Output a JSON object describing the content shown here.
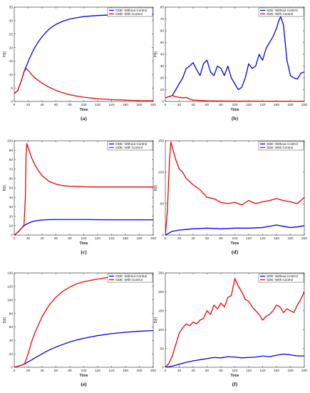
{
  "colors": {
    "without": "#0000ee",
    "with": "#ee0000",
    "axis": "#222222",
    "grid": "#e6e6e6"
  },
  "chart_data": [
    {
      "id": "a",
      "panel_label": "(a)",
      "type": "line",
      "xlabel": "Time",
      "ylabel": "Iᴺ(t)",
      "xlim": [
        0,
        200
      ],
      "ylim": [
        0,
        35
      ],
      "xticks": [
        0,
        20,
        40,
        60,
        80,
        100,
        120,
        140,
        160,
        180,
        200
      ],
      "yticks": [
        0,
        5,
        10,
        15,
        20,
        25,
        30,
        35
      ],
      "series": [
        {
          "name": "ODE: Without Control",
          "color": "#0000ee",
          "x": [
            0,
            5,
            10,
            14,
            18,
            22,
            26,
            30,
            35,
            40,
            45,
            50,
            55,
            60,
            70,
            80,
            90,
            100,
            120,
            140,
            160,
            180,
            200
          ],
          "y": [
            3,
            4,
            7.5,
            11,
            13.5,
            16,
            18.2,
            20.2,
            22.3,
            24,
            25.5,
            26.8,
            27.8,
            28.6,
            29.8,
            30.6,
            31.1,
            31.5,
            31.9,
            32.1,
            32.2,
            32.3,
            32.3
          ]
        },
        {
          "name": "ODE: With Control",
          "color": "#ee0000",
          "x": [
            0,
            5,
            10,
            14,
            17,
            20,
            25,
            30,
            40,
            50,
            60,
            70,
            80,
            90,
            100,
            120,
            140,
            160,
            180,
            200
          ],
          "y": [
            3,
            4,
            7.5,
            11,
            12.2,
            11.5,
            10,
            8.7,
            6.8,
            5.3,
            4.1,
            3.2,
            2.5,
            2,
            1.6,
            1,
            0.7,
            0.5,
            0.3,
            0.25
          ]
        }
      ]
    },
    {
      "id": "b",
      "panel_label": "(b)",
      "type": "line",
      "xlabel": "Time",
      "ylabel": "Iᴺ(t)",
      "xlim": [
        0,
        200
      ],
      "ylim": [
        0,
        80
      ],
      "xticks": [
        0,
        20,
        40,
        60,
        80,
        100,
        120,
        140,
        160,
        180,
        200
      ],
      "yticks": [
        0,
        10,
        20,
        30,
        40,
        50,
        60,
        70,
        80
      ],
      "series": [
        {
          "name": "SDE: Without Control",
          "color": "#0000ee",
          "x": [
            0,
            5,
            10,
            15,
            20,
            25,
            30,
            35,
            40,
            45,
            50,
            55,
            60,
            65,
            70,
            75,
            80,
            85,
            90,
            95,
            100,
            105,
            110,
            115,
            120,
            125,
            130,
            135,
            140,
            145,
            150,
            155,
            160,
            163,
            166,
            170,
            175,
            180,
            185,
            190,
            195,
            200
          ],
          "y": [
            3,
            4,
            5,
            10,
            15,
            20,
            28,
            30,
            33,
            27,
            22,
            32,
            35,
            25,
            22,
            30,
            28,
            22,
            30,
            20,
            15,
            10,
            12,
            20,
            32,
            28,
            30,
            40,
            35,
            45,
            50,
            55,
            62,
            68,
            72,
            65,
            35,
            22,
            20,
            19,
            24,
            25
          ]
        },
        {
          "name": "SDE: With Control",
          "color": "#ee0000",
          "x": [
            0,
            5,
            10,
            15,
            20,
            25,
            30,
            35,
            40,
            50,
            60,
            80,
            100,
            120,
            140,
            160,
            180,
            200
          ],
          "y": [
            3,
            4,
            5,
            4,
            3.5,
            3,
            3.5,
            2,
            1.2,
            0.8,
            0.5,
            0.4,
            0.3,
            0.3,
            0.2,
            0.2,
            0.2,
            0.2
          ]
        }
      ]
    },
    {
      "id": "c",
      "panel_label": "(c)",
      "type": "line",
      "xlabel": "Time",
      "ylabel": "R(t)",
      "xlim": [
        0,
        200
      ],
      "ylim": [
        0,
        100
      ],
      "xticks": [
        0,
        20,
        40,
        60,
        80,
        100,
        120,
        140,
        160,
        180,
        200
      ],
      "yticks": [
        0,
        10,
        20,
        30,
        40,
        50,
        60,
        70,
        80,
        90,
        100
      ],
      "series": [
        {
          "name": "ODE: Without Control",
          "color": "#0000ee",
          "x": [
            0,
            5,
            10,
            15,
            20,
            25,
            30,
            40,
            50,
            60,
            80,
            100,
            120,
            150,
            200
          ],
          "y": [
            0,
            3,
            7,
            10.5,
            12.5,
            14,
            15,
            16,
            16.4,
            16.5,
            16.5,
            16.5,
            16.3,
            16.2,
            16.2
          ]
        },
        {
          "name": "ODE: With Control",
          "color": "#ee0000",
          "x": [
            0,
            5,
            10,
            14,
            16,
            17,
            18,
            20,
            25,
            30,
            35,
            40,
            50,
            60,
            70,
            80,
            100,
            120,
            150,
            200
          ],
          "y": [
            0,
            3,
            7,
            10.5,
            40,
            85,
            97,
            93,
            82,
            74,
            68,
            63,
            57,
            54,
            52.5,
            51.8,
            51.2,
            51,
            51,
            51
          ]
        }
      ]
    },
    {
      "id": "d",
      "panel_label": "(d)",
      "type": "line",
      "xlabel": "Time",
      "ylabel": "R(t)",
      "xlim": [
        0,
        200
      ],
      "ylim": [
        0,
        150
      ],
      "xticks": [
        0,
        20,
        40,
        60,
        80,
        100,
        120,
        140,
        160,
        180,
        200
      ],
      "yticks": [
        0,
        50,
        100,
        150
      ],
      "series": [
        {
          "name": "SDE: Without Control",
          "color": "#0000ee",
          "x": [
            0,
            5,
            10,
            20,
            30,
            40,
            60,
            80,
            100,
            120,
            140,
            160,
            170,
            180,
            190,
            200
          ],
          "y": [
            0,
            3,
            6,
            8,
            9,
            10,
            11,
            10,
            11,
            11,
            12,
            16,
            14,
            12,
            13,
            15
          ]
        },
        {
          "name": "SDE: With Control",
          "color": "#ee0000",
          "x": [
            0,
            3,
            6,
            8,
            10,
            15,
            20,
            25,
            30,
            40,
            50,
            60,
            70,
            80,
            90,
            100,
            110,
            120,
            130,
            140,
            150,
            160,
            170,
            180,
            190,
            200
          ],
          "y": [
            0,
            40,
            120,
            148,
            140,
            120,
            105,
            100,
            90,
            80,
            72,
            60,
            58,
            52,
            50,
            52,
            48,
            55,
            50,
            53,
            55,
            58,
            55,
            53,
            50,
            60
          ]
        }
      ]
    },
    {
      "id": "e",
      "panel_label": "(e)",
      "type": "line",
      "xlabel": "Time",
      "ylabel": "D(t)",
      "xlim": [
        0,
        200
      ],
      "ylim": [
        0,
        140
      ],
      "xticks": [
        0,
        20,
        40,
        60,
        80,
        100,
        120,
        140,
        160,
        180,
        200
      ],
      "yticks": [
        0,
        20,
        40,
        60,
        80,
        100,
        120,
        140
      ],
      "series": [
        {
          "name": "ODE: Without Control",
          "color": "#0000ee",
          "x": [
            0,
            10,
            15,
            20,
            30,
            40,
            50,
            60,
            70,
            80,
            90,
            100,
            120,
            140,
            160,
            180,
            200
          ],
          "y": [
            0,
            3,
            5,
            8,
            14,
            20,
            25.5,
            30,
            34,
            37.5,
            40.5,
            43,
            47,
            50,
            52,
            53.5,
            54.5
          ]
        },
        {
          "name": "ODE: With Control",
          "color": "#ee0000",
          "x": [
            0,
            10,
            15,
            20,
            25,
            30,
            40,
            50,
            60,
            70,
            80,
            90,
            100,
            120,
            140,
            160,
            180,
            200
          ],
          "y": [
            0,
            3,
            5,
            20,
            38,
            52,
            75,
            92,
            104,
            113,
            119,
            124,
            127,
            131,
            134,
            135.5,
            136.5,
            137
          ]
        }
      ]
    },
    {
      "id": "f",
      "panel_label": "(f)",
      "type": "line",
      "xlabel": "Time",
      "ylabel": "D(t)",
      "xlim": [
        0,
        200
      ],
      "ylim": [
        0,
        250
      ],
      "xticks": [
        0,
        20,
        40,
        60,
        80,
        100,
        120,
        140,
        160,
        180,
        200
      ],
      "yticks": [
        0,
        50,
        100,
        150,
        200,
        250
      ],
      "series": [
        {
          "name": "SDE: Without Control",
          "color": "#0000ee",
          "x": [
            0,
            10,
            20,
            30,
            40,
            50,
            60,
            70,
            80,
            90,
            100,
            110,
            120,
            130,
            140,
            150,
            160,
            170,
            180,
            190,
            200
          ],
          "y": [
            0,
            3,
            8,
            13,
            17,
            20,
            23,
            26,
            25,
            28,
            27,
            25,
            26,
            27,
            30,
            28,
            32,
            35,
            33,
            30,
            30
          ]
        },
        {
          "name": "SDE: With Control",
          "color": "#ee0000",
          "x": [
            0,
            5,
            10,
            15,
            20,
            25,
            30,
            35,
            40,
            45,
            50,
            55,
            60,
            65,
            70,
            75,
            80,
            85,
            90,
            95,
            100,
            105,
            110,
            115,
            120,
            125,
            130,
            135,
            140,
            145,
            150,
            155,
            160,
            165,
            170,
            175,
            180,
            185,
            190,
            195,
            200
          ],
          "y": [
            0,
            10,
            30,
            60,
            90,
            105,
            115,
            110,
            120,
            115,
            125,
            130,
            150,
            140,
            165,
            155,
            170,
            160,
            185,
            190,
            235,
            215,
            200,
            180,
            175,
            160,
            150,
            140,
            125,
            135,
            140,
            150,
            165,
            160,
            145,
            155,
            150,
            145,
            165,
            180,
            200
          ]
        }
      ]
    }
  ]
}
